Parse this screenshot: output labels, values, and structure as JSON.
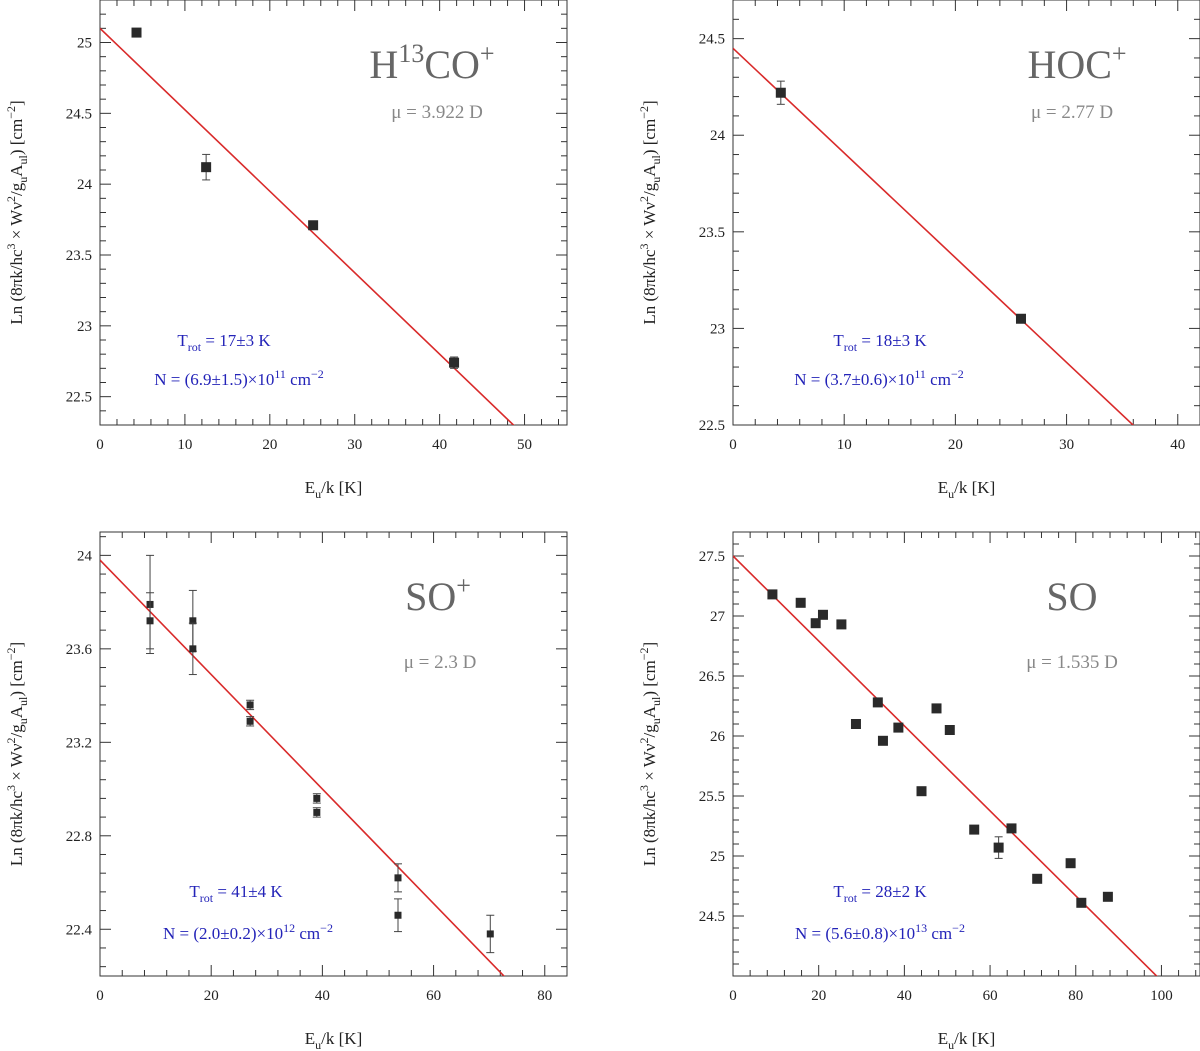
{
  "chart_data": [
    {
      "type": "scatter",
      "molecule": "H13CO+",
      "mol_main": "H",
      "mol_sup1": "13",
      "mol_main2": "CO",
      "mol_sup2": "+",
      "mu_label": "μ = 3.922 D",
      "trot_label": "17±3 K",
      "n_label_pre": "N = (6.9±1.5)×10",
      "n_label_exp": "11",
      "n_label_post": " cm",
      "n_label_unit_exp": "−2",
      "xlim": [
        0,
        55
      ],
      "ylim": [
        22.3,
        25.3
      ],
      "xticks": [
        0,
        10,
        20,
        30,
        40,
        50
      ],
      "yticks": [
        22.5,
        23,
        23.5,
        24,
        24.5,
        25
      ],
      "xticklabels": [
        "0",
        "10",
        "20",
        "30",
        "40",
        "50"
      ],
      "yticklabels": [
        "22.5",
        "23",
        "23.5",
        "24",
        "24.5",
        "25"
      ],
      "x": [
        4.3,
        12.5,
        25.1,
        41.7
      ],
      "y": [
        25.07,
        24.12,
        23.71,
        22.74
      ],
      "yerr": [
        0.0,
        0.09,
        0.0,
        0.04
      ],
      "marker_size": "large",
      "fit": {
        "intercept": 25.1,
        "slope": -0.0575
      }
    },
    {
      "type": "scatter",
      "molecule": "HOC+",
      "mol_main": "HOC",
      "mol_sup2": "+",
      "mu_label": "μ = 2.77 D",
      "trot_label": "18±3 K",
      "n_label_pre": "N = (3.7±0.6)×10",
      "n_label_exp": "11",
      "n_label_post": " cm",
      "n_label_unit_exp": "−2",
      "xlim": [
        0,
        42
      ],
      "ylim": [
        22.5,
        24.7
      ],
      "xticks": [
        0,
        10,
        20,
        30,
        40
      ],
      "yticks": [
        22.5,
        23,
        23.5,
        24,
        24.5
      ],
      "xticklabels": [
        "0",
        "10",
        "20",
        "30",
        "40"
      ],
      "yticklabels": [
        "22.5",
        "23",
        "23.5",
        "24",
        "24.5"
      ],
      "x": [
        4.3,
        25.9
      ],
      "y": [
        24.22,
        23.05
      ],
      "yerr": [
        0.06,
        0.0
      ],
      "marker_size": "large",
      "fit": {
        "intercept": 24.45,
        "slope": -0.0542
      }
    },
    {
      "type": "scatter",
      "molecule": "SO+",
      "mol_main": "SO",
      "mol_sup2": "+",
      "mu_label": "μ = 2.3 D",
      "trot_label": "41±4 K",
      "n_label_pre": "N = (2.0±0.2)×10",
      "n_label_exp": "12",
      "n_label_post": " cm",
      "n_label_unit_exp": "−2",
      "xlim": [
        0,
        84
      ],
      "ylim": [
        22.2,
        24.1
      ],
      "xticks": [
        0,
        20,
        40,
        60,
        80
      ],
      "yticks": [
        22.4,
        22.8,
        23.2,
        23.6,
        24.0
      ],
      "xticklabels": [
        "0",
        "20",
        "40",
        "60",
        "80"
      ],
      "yticklabels": [
        "22.4",
        "22.8",
        "23.2",
        "23.6",
        "24"
      ],
      "x": [
        9.0,
        9.0,
        16.7,
        16.7,
        27.0,
        27.0,
        39.0,
        39.0,
        53.6,
        53.6,
        70.2
      ],
      "y": [
        23.79,
        23.72,
        23.72,
        23.6,
        23.36,
        23.29,
        22.96,
        22.9,
        22.62,
        22.46,
        22.38
      ],
      "yerr": [
        0.21,
        0.12,
        0.13,
        0.11,
        0.02,
        0.02,
        0.02,
        0.02,
        0.06,
        0.07,
        0.08
      ],
      "marker_size": "small",
      "fit": {
        "intercept": 23.98,
        "slope": -0.0245
      }
    },
    {
      "type": "scatter",
      "molecule": "SO",
      "mol_main": "SO",
      "mu_label": "μ = 1.535 D",
      "trot_label": "28±2 K",
      "n_label_pre": "N = (5.6±0.8)×10",
      "n_label_exp": "13",
      "n_label_post": " cm",
      "n_label_unit_exp": "−2",
      "xlim": [
        0,
        109
      ],
      "ylim": [
        24.0,
        27.7
      ],
      "xticks": [
        0,
        20,
        40,
        60,
        80,
        100
      ],
      "yticks": [
        24.5,
        25,
        25.5,
        26,
        26.5,
        27,
        27.5
      ],
      "xticklabels": [
        "0",
        "20",
        "40",
        "60",
        "80",
        "100"
      ],
      "yticklabels": [
        "24.5",
        "25",
        "25.5",
        "26",
        "26.5",
        "27",
        "27.5"
      ],
      "x": [
        9.2,
        15.8,
        19.3,
        21.0,
        25.3,
        28.7,
        33.8,
        35.0,
        38.6,
        44.0,
        47.5,
        50.6,
        56.3,
        62.0,
        65.0,
        71.0,
        78.8,
        81.3,
        87.5
      ],
      "y": [
        27.18,
        27.11,
        26.94,
        27.01,
        26.93,
        26.1,
        26.28,
        25.96,
        26.07,
        25.54,
        26.23,
        26.05,
        25.22,
        25.07,
        25.23,
        24.81,
        24.94,
        24.61,
        24.66
      ],
      "yerr": [
        0,
        0,
        0,
        0,
        0,
        0,
        0,
        0,
        0,
        0,
        0,
        0,
        0,
        0.09,
        0,
        0,
        0,
        0,
        0
      ],
      "marker_size": "large",
      "fit": {
        "intercept": 27.5,
        "slope": -0.0354
      }
    }
  ],
  "axes": {
    "xlabel_main": "E",
    "xlabel_sub": "u",
    "xlabel_rest": "/k [K]",
    "ylabel_a": "Ln (8πk/hc",
    "ylabel_sup3": "3",
    "ylabel_b": " × Wν",
    "ylabel_sup2": "2",
    "ylabel_c": "/g",
    "ylabel_sub_u": "u",
    "ylabel_d": "A",
    "ylabel_sub_ul": "ul",
    "ylabel_e": ") [cm",
    "ylabel_supm2": "−2",
    "ylabel_f": "]",
    "trot_prefix": "T",
    "trot_sub": "rot",
    "trot_eq": " = "
  }
}
